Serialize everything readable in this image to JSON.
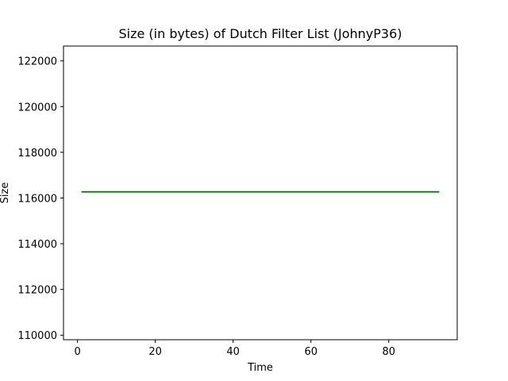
{
  "chart_data": {
    "type": "line",
    "title": "Size (in bytes) of Dutch Filter List (JohnyP36)",
    "xlabel": "Time",
    "ylabel": "Size",
    "xlim": [
      -3.6,
      97.6
    ],
    "ylim": [
      109800,
      122650
    ],
    "xticks": [
      0,
      20,
      40,
      60,
      80
    ],
    "yticks": [
      110000,
      112000,
      114000,
      116000,
      118000,
      120000,
      122000
    ],
    "grid": false,
    "series": [
      {
        "color": "#008000",
        "x": [
          1,
          93
        ],
        "y": [
          116270,
          116270
        ]
      }
    ]
  }
}
